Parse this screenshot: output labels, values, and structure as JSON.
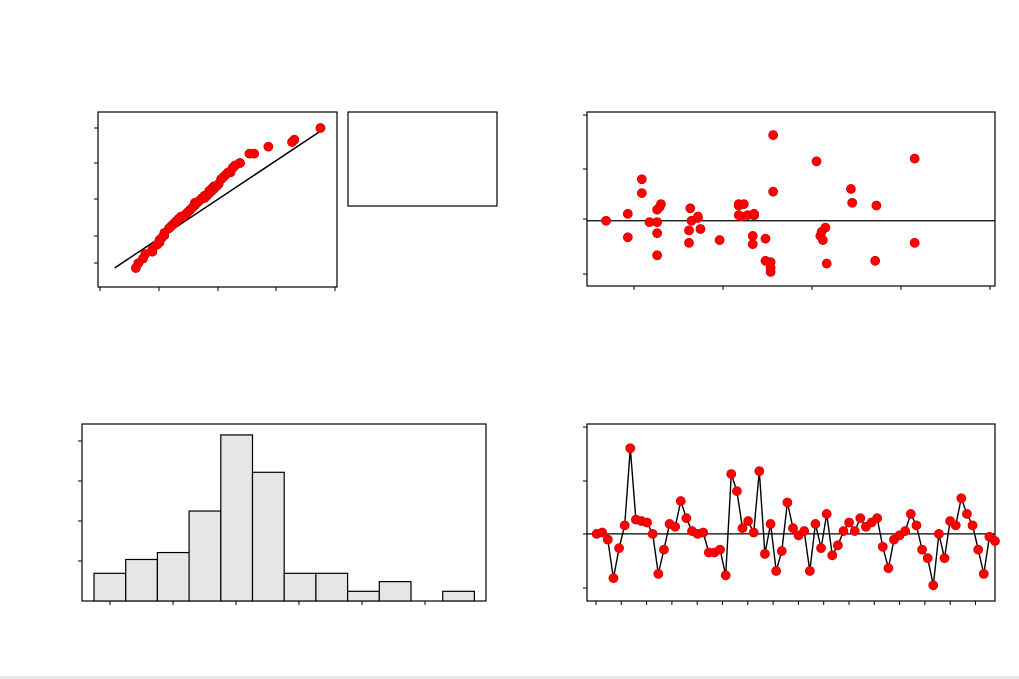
{
  "colors": {
    "marker": "#ff0000",
    "marker_edge": "#cc0000",
    "line": "#000000",
    "bar_fill": "#e6e6e6",
    "background": "#ffffff"
  },
  "chart_data": [
    {
      "id": "normal-probability",
      "type": "scatter",
      "title": "",
      "xlabel": "",
      "ylabel": "",
      "xlim": [
        -1,
        100
      ],
      "ylim": [
        -3,
        3
      ],
      "y_scale": "normal-probability",
      "grid": false,
      "reference_line": {
        "from": [
          6,
          -3
        ],
        "to": [
          95,
          3
        ]
      },
      "legend_box": {
        "placement": "right",
        "entries": []
      },
      "points": [
        [
          93,
          3.0
        ],
        [
          82,
          2.5
        ],
        [
          81,
          2.4
        ],
        [
          71,
          2.2
        ],
        [
          65,
          1.9
        ],
        [
          63,
          1.9
        ],
        [
          59,
          1.5
        ],
        [
          59,
          1.5
        ],
        [
          57,
          1.4
        ],
        [
          56,
          1.3
        ],
        [
          56,
          1.3
        ],
        [
          55,
          1.1
        ],
        [
          54,
          1.1
        ],
        [
          53,
          1.0
        ],
        [
          52,
          0.9
        ],
        [
          51,
          0.8
        ],
        [
          50,
          0.6
        ],
        [
          49,
          0.5
        ],
        [
          48,
          0.5
        ],
        [
          48,
          0.4
        ],
        [
          47,
          0.4
        ],
        [
          47,
          0.3
        ],
        [
          46,
          0.3
        ],
        [
          46,
          0.2
        ],
        [
          45,
          0.1
        ],
        [
          45,
          0.1
        ],
        [
          44,
          0.1
        ],
        [
          44,
          0.0
        ],
        [
          43,
          0.0
        ],
        [
          42,
          -0.1
        ],
        [
          41,
          -0.2
        ],
        [
          40,
          -0.2
        ],
        [
          40,
          -0.3
        ],
        [
          39,
          -0.4
        ],
        [
          38,
          -0.5
        ],
        [
          38,
          -0.5
        ],
        [
          37,
          -0.6
        ],
        [
          36,
          -0.7
        ],
        [
          35,
          -0.8
        ],
        [
          34,
          -0.8
        ],
        [
          33,
          -0.9
        ],
        [
          32,
          -1.0
        ],
        [
          31,
          -1.1
        ],
        [
          30,
          -1.2
        ],
        [
          29,
          -1.3
        ],
        [
          27,
          -1.5
        ],
        [
          27,
          -1.6
        ],
        [
          26,
          -1.7
        ],
        [
          25,
          -1.8
        ],
        [
          25,
          -1.9
        ],
        [
          24,
          -2.0
        ],
        [
          22,
          -2.2
        ],
        [
          22,
          -2.3
        ],
        [
          19,
          -2.4
        ],
        [
          18,
          -2.6
        ],
        [
          16,
          -2.8
        ],
        [
          15,
          -3.0
        ]
      ]
    },
    {
      "id": "residuals-vs-fits",
      "type": "scatter",
      "title": "",
      "xlabel": "",
      "ylabel": "",
      "xlim": [
        -20,
        300
      ],
      "ylim": [
        -40,
        70
      ],
      "reference_line_y": 0,
      "grid": false,
      "points": [
        [
          -5,
          0
        ],
        [
          12,
          5
        ],
        [
          12,
          -12
        ],
        [
          23,
          30
        ],
        [
          23,
          20
        ],
        [
          29,
          -1
        ],
        [
          35,
          -1
        ],
        [
          35,
          8
        ],
        [
          35,
          -9
        ],
        [
          35,
          -25
        ],
        [
          37,
          10
        ],
        [
          38,
          12
        ],
        [
          61,
          9
        ],
        [
          62,
          0
        ],
        [
          60,
          -7
        ],
        [
          60,
          -16
        ],
        [
          67,
          2
        ],
        [
          67,
          3
        ],
        [
          69,
          -6
        ],
        [
          84,
          -14
        ],
        [
          99,
          11
        ],
        [
          99,
          12
        ],
        [
          101,
          3
        ],
        [
          99,
          4
        ],
        [
          103,
          12
        ],
        [
          106,
          4
        ],
        [
          110,
          -11
        ],
        [
          110,
          -17
        ],
        [
          111,
          4
        ],
        [
          111,
          4
        ],
        [
          111,
          5
        ],
        [
          120,
          -29
        ],
        [
          120,
          -13
        ],
        [
          124,
          -30
        ],
        [
          124,
          -37
        ],
        [
          124,
          -34
        ],
        [
          126,
          21
        ],
        [
          126,
          62
        ],
        [
          163,
          -11
        ],
        [
          164,
          -8
        ],
        [
          165,
          -14
        ],
        [
          167,
          -5
        ],
        [
          168,
          -31
        ],
        [
          160,
          43
        ],
        [
          187,
          23
        ],
        [
          188,
          13
        ],
        [
          207,
          11
        ],
        [
          206,
          -29
        ],
        [
          237,
          45
        ],
        [
          237,
          -16
        ]
      ]
    },
    {
      "id": "histogram",
      "type": "bar",
      "title": "",
      "xlabel": "",
      "ylabel": "",
      "ylim": [
        0,
        12.5
      ],
      "grid": false,
      "values": [
        2.0,
        3.0,
        3.5,
        6.5,
        12.0,
        9.3,
        2.0,
        2.0,
        0.7,
        1.4,
        0.0,
        0.7
      ]
    },
    {
      "id": "residuals-vs-order",
      "type": "line",
      "title": "",
      "xlabel": "",
      "ylabel": "",
      "xlim": [
        0,
        72
      ],
      "ylim": [
        -40,
        70
      ],
      "reference_line_y": 0,
      "grid": false,
      "values": [
        0,
        1,
        -4,
        -31,
        -10,
        6,
        60,
        10,
        9,
        8,
        0,
        -28,
        -11,
        7,
        5,
        23,
        11,
        2,
        0,
        1,
        -13,
        -13,
        -11,
        -29,
        42,
        30,
        4,
        9,
        1,
        44,
        -14,
        7,
        -26,
        -12,
        22,
        4,
        -1,
        2,
        -26,
        7,
        -10,
        14,
        -15,
        -8,
        2,
        8,
        2,
        11,
        5,
        8,
        11,
        -9,
        -24,
        -4,
        -1,
        2,
        14,
        6,
        -11,
        -17,
        -36,
        0,
        -17,
        9,
        6,
        25,
        14,
        6,
        -11,
        -28,
        -2,
        -5
      ]
    }
  ]
}
